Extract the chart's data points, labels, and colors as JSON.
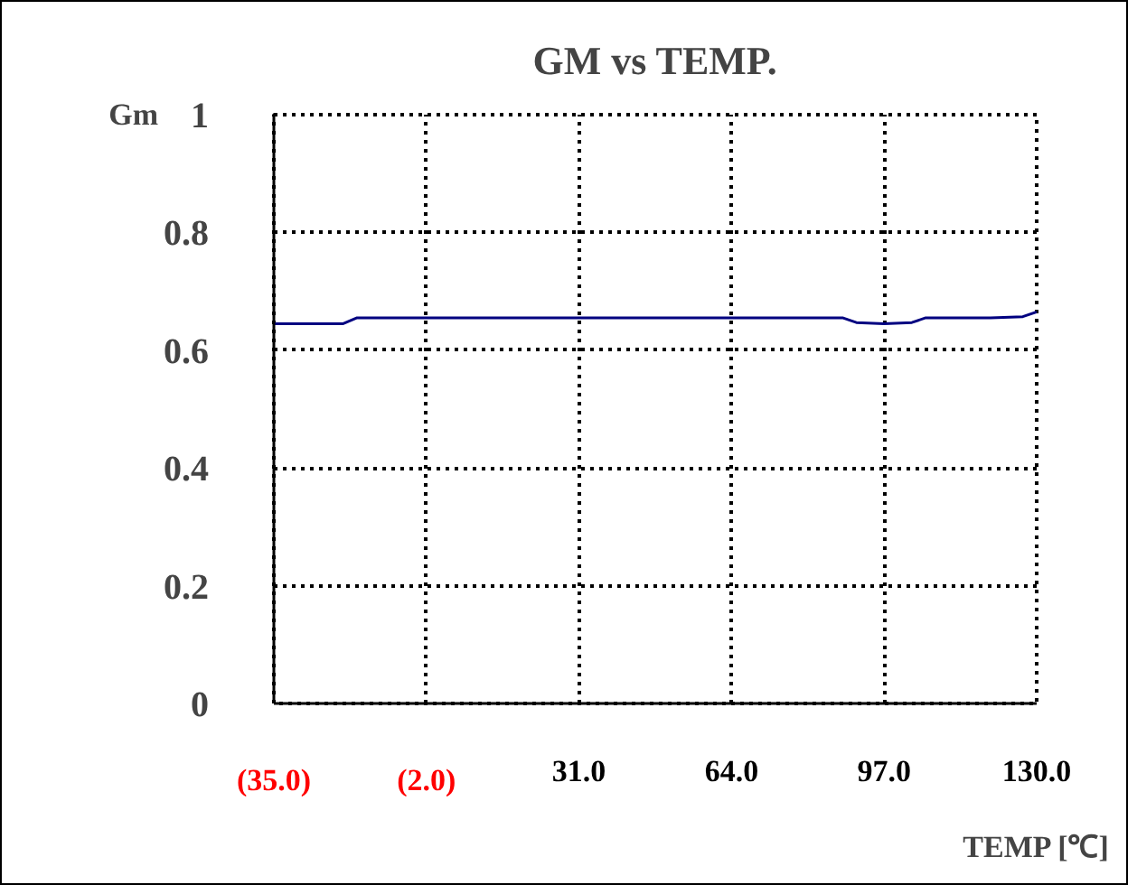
{
  "chart_data": {
    "type": "line",
    "title": "GM vs TEMP.",
    "xlabel": "TEMP [℃]",
    "ylabel": "Gm",
    "x": [
      -35,
      -20,
      -17,
      0,
      30,
      60,
      88,
      91,
      97,
      103,
      106,
      120,
      127,
      130
    ],
    "series": [
      {
        "color": "#000080",
        "values": [
          0.645,
          0.645,
          0.655,
          0.655,
          0.655,
          0.655,
          0.655,
          0.647,
          0.645,
          0.647,
          0.655,
          0.655,
          0.657,
          0.665
        ]
      }
    ],
    "xlim": [
      -35,
      130
    ],
    "ylim": [
      0,
      1
    ],
    "xticks": [
      {
        "value": -35,
        "label": "(35.0)"
      },
      {
        "value": -2,
        "label": "(2.0)"
      },
      {
        "value": 31,
        "label": "31.0"
      },
      {
        "value": 64,
        "label": "64.0"
      },
      {
        "value": 97,
        "label": "97.0"
      },
      {
        "value": 130,
        "label": "130.0"
      }
    ],
    "yticks": [
      0,
      0.2,
      0.4,
      0.6,
      0.8,
      1
    ],
    "grid": true,
    "marker": "none",
    "line_style": "solid"
  }
}
